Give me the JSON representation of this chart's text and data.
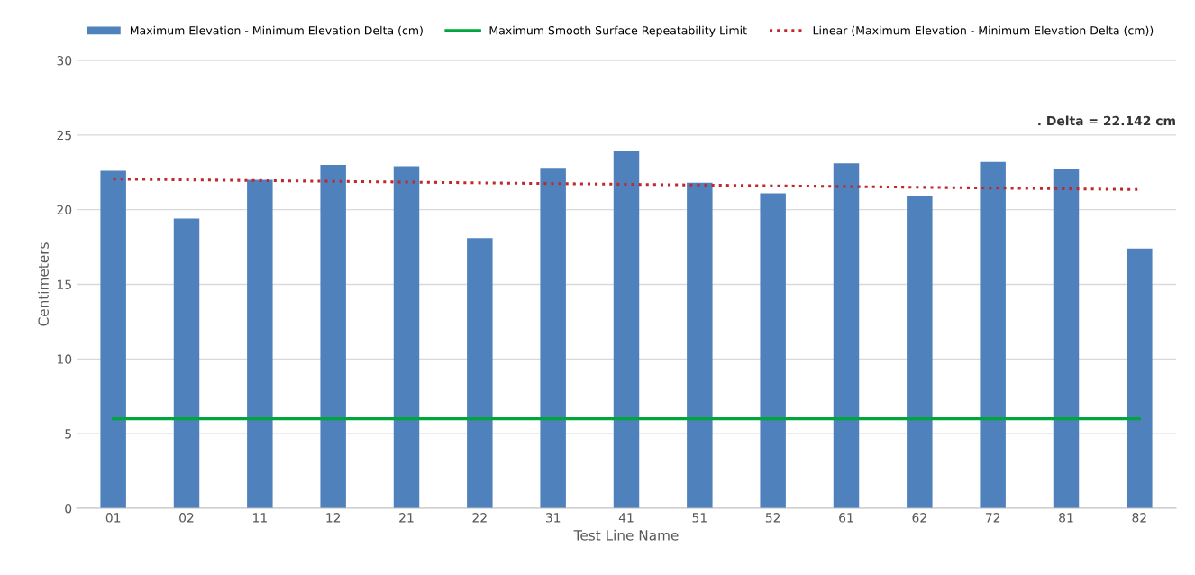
{
  "chart_data": {
    "type": "bar",
    "xlabel": "Test Line Name",
    "ylabel": "Centimeters",
    "categories": [
      "01",
      "02",
      "11",
      "12",
      "21",
      "22",
      "31",
      "41",
      "51",
      "52",
      "61",
      "62",
      "72",
      "81",
      "82"
    ],
    "series": [
      {
        "name": "Maximum Elevation - Minimum Elevation Delta (cm)",
        "color": "#4f81bd",
        "values": [
          22.6,
          19.4,
          22.0,
          23.0,
          22.9,
          18.1,
          22.8,
          23.9,
          21.8,
          21.1,
          23.1,
          20.9,
          23.2,
          22.7,
          17.4
        ]
      },
      {
        "name": "Maximum Smooth Surface Repeatability Limit",
        "type": "line",
        "color": "#00a63c",
        "line_style": "solid",
        "values": [
          6,
          6,
          6,
          6,
          6,
          6,
          6,
          6,
          6,
          6,
          6,
          6,
          6,
          6,
          6
        ]
      },
      {
        "name": "Linear (Maximum Elevation - Minimum Elevation Delta (cm))",
        "type": "line",
        "color": "#c0282d",
        "line_style": "dotted",
        "x": [
          "01",
          "82"
        ],
        "values": [
          22.05,
          21.35
        ]
      }
    ],
    "ylim": [
      0,
      30
    ],
    "yticks": [
      0,
      5,
      10,
      15,
      20,
      25,
      30
    ],
    "grid": "y",
    "legend": "top left",
    "annotations": [
      ". Delta = 22.142 cm"
    ]
  }
}
